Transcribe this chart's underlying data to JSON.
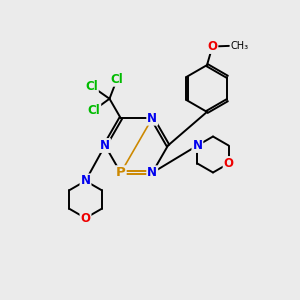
{
  "bg_color": "#ebebeb",
  "atom_colors": {
    "N": "#0000ee",
    "O": "#ee0000",
    "P": "#cc8800",
    "Cl": "#00bb00",
    "C": "#000000"
  },
  "bond_color": "#000000",
  "bond_lw": 1.4,
  "font_size": 8.5,
  "fig_size": [
    3.0,
    3.0
  ],
  "dpi": 100
}
